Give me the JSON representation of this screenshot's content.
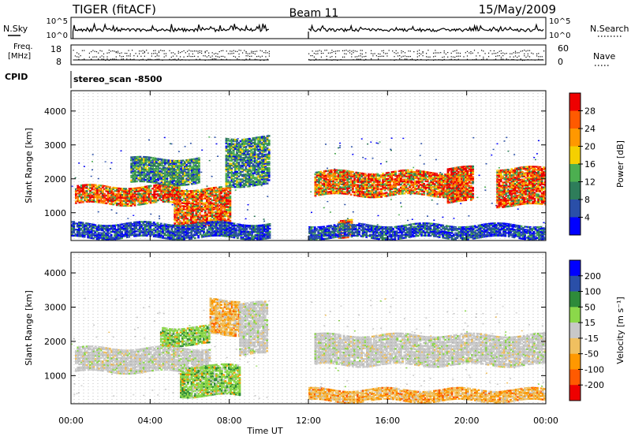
{
  "header": {
    "radar": "TIGER (fitACF)",
    "beam": "Beam 11",
    "date": "15/May/2009"
  },
  "strips": {
    "nsky_label": "N.Sky",
    "nsearch_label": "N.Search",
    "noise_ticks": [
      "10^5",
      "10^0"
    ],
    "freq_label_1": "Freq.",
    "freq_label_2": "[MHz]",
    "freq_ticks": [
      "18",
      "8"
    ],
    "nave_label": "Nave",
    "nave_ticks": [
      "60",
      "0"
    ],
    "cpid_label": "CPID",
    "cpid_value": "stereo_scan  -8500"
  },
  "colors": {
    "power_scale": [
      "#0000ff",
      "#2a4fa8",
      "#2e7d5a",
      "#4caf50",
      "#f5d000",
      "#ff9800",
      "#ff5a00",
      "#ee0000"
    ],
    "velocity_scale": [
      "#ee0000",
      "#ff5a00",
      "#ff9800",
      "#f0c060",
      "#c8c8c8",
      "#8bd84a",
      "#2e8b3a",
      "#2a4fa8",
      "#0000ff"
    ]
  },
  "chart_data": [
    {
      "type": "heatmap",
      "title": "",
      "xlabel": "Time UT",
      "ylabel": "Slant Range [km]",
      "x_ticks": [
        "00:00",
        "04:00",
        "08:00",
        "12:00",
        "16:00",
        "20:00",
        "00:00"
      ],
      "y_ticks": [
        1000,
        2000,
        3000,
        4000
      ],
      "xlim": [
        0,
        24
      ],
      "ylim": [
        180,
        4600
      ],
      "colorbar": {
        "label": "Power [dB]",
        "ticks": [
          "4",
          "8",
          "12",
          "16",
          "20",
          "24",
          "28"
        ],
        "range": [
          0,
          32
        ]
      },
      "data_gap_hours": [
        10.0,
        12.0
      ],
      "bands": [
        {
          "t0": 0.2,
          "t1": 5.5,
          "r0": 1250,
          "r1": 1780,
          "level": "high"
        },
        {
          "t0": 5.2,
          "t1": 8.0,
          "r0": 600,
          "r1": 1700,
          "level": "high"
        },
        {
          "t0": 3.0,
          "t1": 6.5,
          "r0": 1850,
          "r1": 2600,
          "level": "medium"
        },
        {
          "t0": 7.8,
          "t1": 10.0,
          "r0": 1800,
          "r1": 3200,
          "level": "medium"
        },
        {
          "t0": 12.3,
          "t1": 19.8,
          "r0": 1500,
          "r1": 2200,
          "level": "high"
        },
        {
          "t0": 19.0,
          "t1": 20.3,
          "r0": 1300,
          "r1": 2300,
          "level": "high"
        },
        {
          "t0": 21.5,
          "t1": 24.0,
          "r0": 1200,
          "r1": 2300,
          "level": "high"
        },
        {
          "t0": 13.5,
          "t1": 14.2,
          "r0": 300,
          "r1": 800,
          "level": "high"
        },
        {
          "t0": 0.0,
          "t1": 10.0,
          "r0": 250,
          "r1": 700,
          "level": "low"
        },
        {
          "t0": 12.0,
          "t1": 24.0,
          "r0": 250,
          "r1": 650,
          "level": "low"
        }
      ]
    },
    {
      "type": "heatmap",
      "title": "",
      "xlabel": "Time UT",
      "ylabel": "Slant Range [km]",
      "x_ticks": [
        "00:00",
        "04:00",
        "08:00",
        "12:00",
        "16:00",
        "20:00",
        "00:00"
      ],
      "y_ticks": [
        1000,
        2000,
        3000,
        4000
      ],
      "xlim": [
        0,
        24
      ],
      "ylim": [
        180,
        4600
      ],
      "colorbar": {
        "label": "Velocity [m s⁻¹]",
        "ticks": [
          "200",
          "100",
          "50",
          "15",
          "-15",
          "-50",
          "-100",
          "-200"
        ]
      },
      "data_gap_hours": [
        10.0,
        12.0
      ],
      "bands": [
        {
          "t0": 0.2,
          "t1": 7.0,
          "r0": 1100,
          "r1": 1800,
          "level": "zero"
        },
        {
          "t0": 5.5,
          "t1": 8.5,
          "r0": 400,
          "r1": 1300,
          "level": "positive"
        },
        {
          "t0": 4.5,
          "t1": 7.0,
          "r0": 1900,
          "r1": 2400,
          "level": "positive"
        },
        {
          "t0": 7.0,
          "t1": 8.5,
          "r0": 2200,
          "r1": 3200,
          "level": "negative"
        },
        {
          "t0": 8.5,
          "t1": 9.9,
          "r0": 1600,
          "r1": 3100,
          "level": "zero"
        },
        {
          "t0": 12.3,
          "t1": 24.0,
          "r0": 1300,
          "r1": 2200,
          "level": "zero"
        },
        {
          "t0": 12.0,
          "t1": 24.0,
          "r0": 250,
          "r1": 600,
          "level": "negative"
        }
      ]
    }
  ]
}
